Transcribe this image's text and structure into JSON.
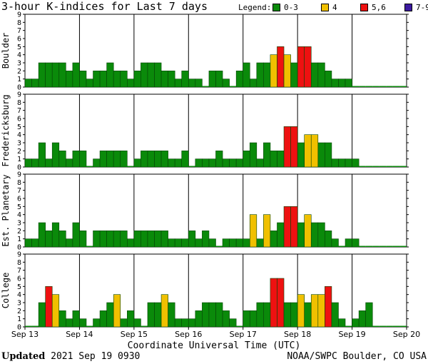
{
  "title": "3-hour K-indices for Last 7 days",
  "legend": {
    "label": "Legend:",
    "items": [
      {
        "text": "0-3",
        "color": "#0a8a0a"
      },
      {
        "text": "4",
        "color": "#f0c000"
      },
      {
        "text": "5,6",
        "color": "#ee1111"
      },
      {
        "text": "7-9",
        "color": "#3c1aa0"
      }
    ]
  },
  "x_axis_title": "Coordinate Universal Time (UTC)",
  "footer": {
    "updated_label": "Updated",
    "updated_value": " 2021 Sep 19 0930",
    "credit": "NOAA/SWPC Boulder, CO USA"
  },
  "chart_data": {
    "type": "bar",
    "x_tick_labels": [
      "Sep 13",
      "Sep 14",
      "Sep 15",
      "Sep 16",
      "Sep 17",
      "Sep 18",
      "Sep 19",
      "Sep 20"
    ],
    "y_range": [
      0,
      9
    ],
    "y_ticks": [
      0,
      1,
      2,
      3,
      4,
      5,
      6,
      7,
      8,
      9
    ],
    "interval_hours": 3,
    "color_scale": {
      "0-3": "#0a8a0a",
      "4": "#f0c000",
      "5,6": "#ee1111",
      "7-9": "#3c1aa0"
    },
    "panels": [
      {
        "name": "Boulder",
        "values": [
          1,
          1,
          3,
          3,
          3,
          3,
          2,
          3,
          2,
          1,
          2,
          2,
          3,
          2,
          2,
          1,
          2,
          3,
          3,
          3,
          2,
          2,
          1,
          2,
          1,
          1,
          0,
          2,
          2,
          1,
          0,
          2,
          3,
          1,
          3,
          3,
          4,
          5,
          4,
          3,
          5,
          5,
          3,
          3,
          2,
          1,
          1,
          1,
          0,
          0,
          0,
          0,
          0,
          0,
          0,
          0
        ]
      },
      {
        "name": "Fredericksburg",
        "values": [
          1,
          1,
          3,
          1,
          3,
          2,
          1,
          2,
          2,
          0,
          1,
          2,
          2,
          2,
          2,
          0,
          1,
          2,
          2,
          2,
          2,
          1,
          1,
          2,
          0,
          1,
          1,
          1,
          2,
          1,
          1,
          1,
          2,
          3,
          1,
          3,
          2,
          2,
          5,
          5,
          3,
          4,
          4,
          3,
          3,
          1,
          1,
          1,
          1,
          0,
          0,
          0,
          0,
          0,
          0,
          0
        ]
      },
      {
        "name": "Est. Planetary",
        "values": [
          1,
          1,
          3,
          2,
          3,
          2,
          1,
          3,
          2,
          0,
          2,
          2,
          2,
          2,
          2,
          1,
          2,
          2,
          2,
          2,
          2,
          1,
          1,
          1,
          2,
          1,
          2,
          1,
          0,
          1,
          1,
          1,
          1,
          4,
          1,
          4,
          2,
          3,
          5,
          5,
          3,
          4,
          3,
          3,
          2,
          1,
          0,
          1,
          1,
          0,
          0,
          0,
          0,
          0,
          0,
          0
        ]
      },
      {
        "name": "College",
        "values": [
          0,
          0,
          3,
          5,
          4,
          2,
          1,
          2,
          1,
          0,
          1,
          2,
          3,
          4,
          1,
          2,
          1,
          0,
          3,
          3,
          4,
          3,
          1,
          1,
          1,
          2,
          3,
          3,
          3,
          2,
          1,
          0,
          2,
          2,
          3,
          3,
          6,
          6,
          3,
          3,
          4,
          3,
          4,
          4,
          5,
          3,
          1,
          0,
          1,
          2,
          3,
          0,
          0,
          0,
          0,
          0
        ]
      }
    ]
  }
}
